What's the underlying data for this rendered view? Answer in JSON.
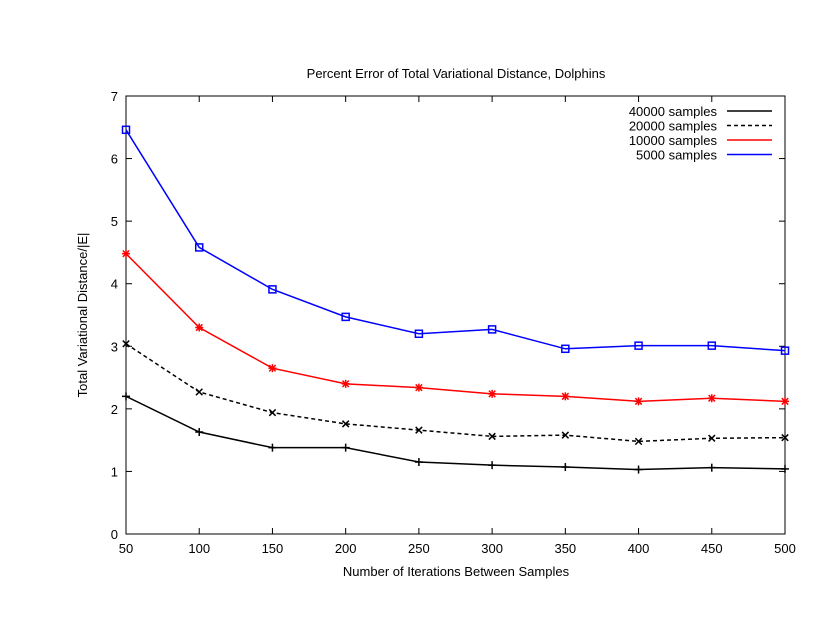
{
  "chart_data": {
    "type": "line",
    "title": "Percent Error of Total Variational Distance, Dolphins",
    "xlabel": "Number of Iterations Between Samples",
    "ylabel": "Total Variational Distance/|E|",
    "xlim": [
      50,
      500
    ],
    "ylim": [
      0,
      7
    ],
    "x_ticks": [
      "50",
      "100",
      "150",
      "200",
      "250",
      "300",
      "350",
      "400",
      "450",
      "500"
    ],
    "y_ticks": [
      "0",
      "1",
      "2",
      "3",
      "4",
      "5",
      "6",
      "7"
    ],
    "grid": false,
    "legend_position": "top-right",
    "x": [
      50,
      100,
      150,
      200,
      250,
      300,
      350,
      400,
      450,
      500
    ],
    "series": [
      {
        "name": "40000 samples",
        "color": "#000000",
        "dash": "solid",
        "marker": "plus",
        "values": [
          2.2,
          1.63,
          1.38,
          1.38,
          1.15,
          1.1,
          1.07,
          1.03,
          1.06,
          1.04
        ]
      },
      {
        "name": "20000 samples",
        "color": "#000000",
        "dash": "dashed",
        "marker": "x",
        "values": [
          3.04,
          2.27,
          1.94,
          1.76,
          1.66,
          1.56,
          1.58,
          1.48,
          1.53,
          1.54
        ]
      },
      {
        "name": "10000 samples",
        "color": "#ff0000",
        "dash": "solid",
        "marker": "star",
        "values": [
          4.48,
          3.3,
          2.65,
          2.4,
          2.34,
          2.24,
          2.2,
          2.12,
          2.17,
          2.12
        ]
      },
      {
        "name": "5000 samples",
        "color": "#0000ff",
        "dash": "solid",
        "marker": "square",
        "values": [
          6.46,
          4.58,
          3.91,
          3.47,
          3.2,
          3.27,
          2.96,
          3.01,
          3.01,
          2.93
        ]
      }
    ]
  }
}
